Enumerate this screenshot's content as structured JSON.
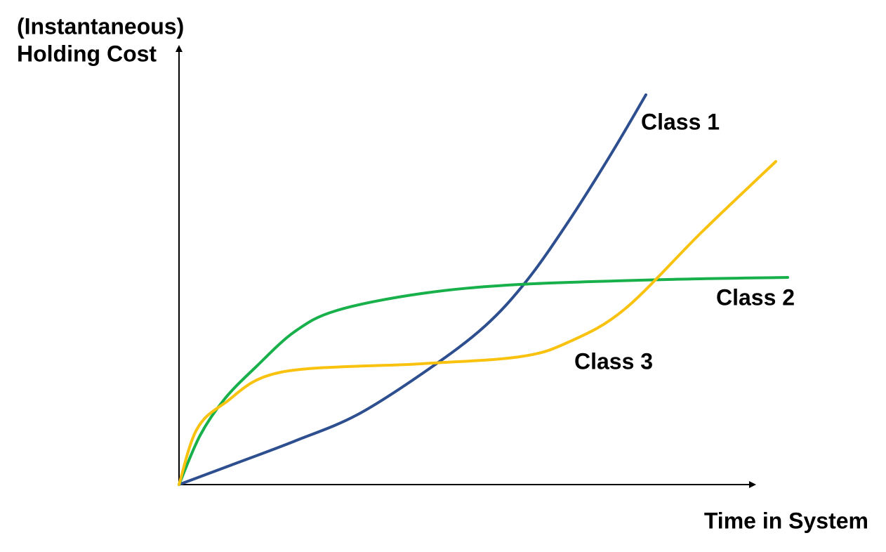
{
  "y_axis": {
    "label_lines": [
      "(Instantaneous)",
      "Holding Cost"
    ]
  },
  "x_axis": {
    "label": "Time in System"
  },
  "curves": [
    {
      "label": "Class 1"
    },
    {
      "label": "Class 2"
    },
    {
      "label": "Class 3"
    }
  ]
}
